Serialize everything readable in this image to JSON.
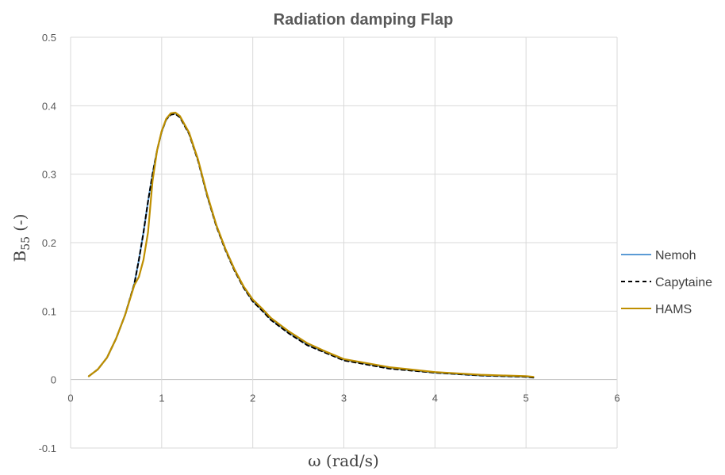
{
  "chart_data": {
    "type": "line",
    "title": "Radiation damping Flap",
    "xlabel": "ω (rad/s)",
    "ylabel_main": "B",
    "ylabel_sub": "55",
    "ylabel_suffix": "(-)",
    "xlim": [
      0,
      6
    ],
    "ylim": [
      -0.1,
      0.5
    ],
    "x_ticks": [
      0,
      1,
      2,
      3,
      4,
      5,
      6
    ],
    "y_ticks": [
      -0.1,
      0,
      0.1,
      0.2,
      0.3,
      0.4,
      0.5
    ],
    "x_tick_labels": [
      "0",
      "1",
      "2",
      "3",
      "4",
      "5",
      "6"
    ],
    "y_tick_labels": [
      "-0.1",
      "0",
      "0.1",
      "0.2",
      "0.3",
      "0.4",
      "0.5"
    ],
    "grid": true,
    "legend_position": "right",
    "series": [
      {
        "name": "Nemoh",
        "color": "#5b9bd5",
        "dash": "solid",
        "x": [
          0.2,
          0.3,
          0.4,
          0.5,
          0.6,
          0.7,
          0.75,
          0.8,
          0.85,
          0.9,
          0.95,
          1.0,
          1.05,
          1.1,
          1.15,
          1.2,
          1.3,
          1.4,
          1.5,
          1.6,
          1.7,
          1.8,
          1.9,
          2.0,
          2.1,
          2.2,
          2.4,
          2.6,
          2.8,
          3.0,
          3.5,
          4.0,
          4.5,
          5.0,
          5.08
        ],
        "y": [
          0.005,
          0.015,
          0.032,
          0.06,
          0.095,
          0.14,
          0.175,
          0.215,
          0.26,
          0.3,
          0.335,
          0.362,
          0.38,
          0.388,
          0.389,
          0.384,
          0.36,
          0.32,
          0.268,
          0.225,
          0.19,
          0.16,
          0.135,
          0.115,
          0.102,
          0.088,
          0.068,
          0.051,
          0.04,
          0.029,
          0.017,
          0.01,
          0.006,
          0.004,
          0.003
        ]
      },
      {
        "name": "Capytaine",
        "color": "#000000",
        "dash": "dashed",
        "x": [
          0.2,
          0.3,
          0.4,
          0.5,
          0.6,
          0.7,
          0.75,
          0.8,
          0.85,
          0.9,
          0.95,
          1.0,
          1.05,
          1.1,
          1.15,
          1.2,
          1.3,
          1.4,
          1.5,
          1.6,
          1.7,
          1.8,
          1.9,
          2.0,
          2.1,
          2.2,
          2.4,
          2.6,
          2.8,
          3.0,
          3.5,
          4.0,
          4.5,
          5.0,
          5.08
        ],
        "y": [
          0.005,
          0.015,
          0.032,
          0.06,
          0.095,
          0.14,
          0.175,
          0.215,
          0.26,
          0.3,
          0.335,
          0.362,
          0.38,
          0.387,
          0.388,
          0.383,
          0.359,
          0.319,
          0.268,
          0.224,
          0.189,
          0.159,
          0.134,
          0.114,
          0.101,
          0.087,
          0.067,
          0.05,
          0.039,
          0.028,
          0.016,
          0.01,
          0.006,
          0.004,
          0.003
        ]
      },
      {
        "name": "HAMS",
        "color": "#bf8f00",
        "dash": "solid",
        "x": [
          0.2,
          0.3,
          0.4,
          0.5,
          0.6,
          0.7,
          0.75,
          0.8,
          0.85,
          0.9,
          0.95,
          1.0,
          1.05,
          1.1,
          1.15,
          1.2,
          1.3,
          1.4,
          1.5,
          1.6,
          1.7,
          1.8,
          1.9,
          2.0,
          2.1,
          2.2,
          2.4,
          2.6,
          2.8,
          3.0,
          3.5,
          4.0,
          4.5,
          5.0,
          5.08
        ],
        "y": [
          0.005,
          0.015,
          0.032,
          0.06,
          0.095,
          0.138,
          0.15,
          0.175,
          0.215,
          0.29,
          0.335,
          0.363,
          0.381,
          0.389,
          0.39,
          0.385,
          0.361,
          0.321,
          0.27,
          0.226,
          0.191,
          0.161,
          0.136,
          0.117,
          0.104,
          0.09,
          0.07,
          0.053,
          0.041,
          0.03,
          0.018,
          0.011,
          0.007,
          0.005,
          0.004
        ]
      }
    ]
  }
}
